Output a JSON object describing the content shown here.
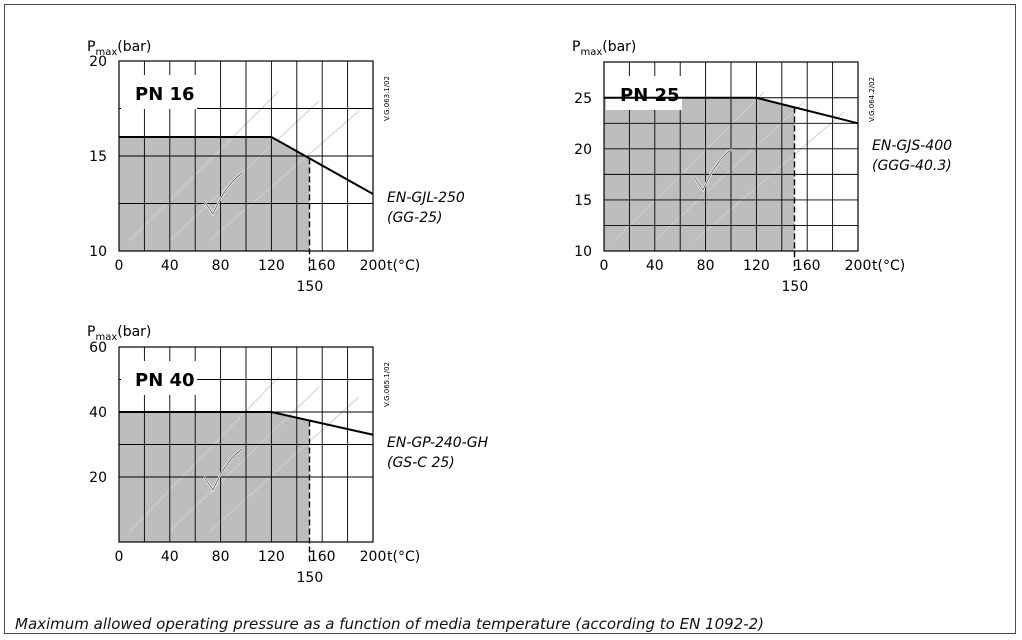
{
  "caption": "Maximum allowed operating pressure as a function of media temperature (according to  EN 1092-2)",
  "colors": {
    "fill": "#bdbdbd",
    "grid": "#000000",
    "plot_bg": "#ffffff",
    "curve": "#000000"
  },
  "icon": "checkmark-icon",
  "chart_data": [
    {
      "type": "line",
      "label": "PN 16",
      "ylabel_main": "P",
      "ylabel_sub": "max",
      "ylabel_unit": "(bar)",
      "xlabel": "t(°C)",
      "xlim": [
        0,
        200
      ],
      "ylim": [
        10,
        20
      ],
      "xticks": [
        "0",
        "40",
        "80",
        "120",
        "160",
        "200"
      ],
      "yticks": [
        "10",
        "15",
        "20"
      ],
      "marker_label": "150",
      "ref_code": "V.G.063.1/02",
      "material": "EN-GJL-250",
      "material_alt": "(GG-25)",
      "series": [
        {
          "x": [
            0,
            120,
            200
          ],
          "y": [
            16,
            16,
            13
          ]
        }
      ],
      "fill_xmax": 150
    },
    {
      "type": "line",
      "label": "PN 25",
      "ylabel_main": "P",
      "ylabel_sub": "max",
      "ylabel_unit": "(bar)",
      "xlabel": "t(°C)",
      "xlim": [
        0,
        200
      ],
      "ylim": [
        10,
        28.5
      ],
      "xticks": [
        "0",
        "40",
        "80",
        "120",
        "160",
        "200"
      ],
      "yticks": [
        "10",
        "15",
        "20",
        "25"
      ],
      "marker_label": "150",
      "ref_code": "V.G.064.2/02",
      "material": "EN-GJS-400",
      "material_alt": "(GGG-40.3)",
      "series": [
        {
          "x": [
            0,
            120,
            200
          ],
          "y": [
            25,
            25,
            22.5
          ]
        }
      ],
      "fill_xmax": 150
    },
    {
      "type": "line",
      "label": "PN 40",
      "ylabel_main": "P",
      "ylabel_sub": "max",
      "ylabel_unit": "(bar)",
      "xlabel": "t(°C)",
      "xlim": [
        0,
        200
      ],
      "ylim": [
        0,
        60
      ],
      "xticks": [
        "0",
        "40",
        "80",
        "120",
        "160",
        "200"
      ],
      "yticks": [
        "20",
        "40",
        "60"
      ],
      "marker_label": "150",
      "ref_code": "V.G.065.1/02",
      "material": "EN-GP-240-GH",
      "material_alt": "(GS-C 25)",
      "series": [
        {
          "x": [
            0,
            120,
            200
          ],
          "y": [
            40,
            40,
            33
          ]
        }
      ],
      "fill_xmax": 150
    }
  ]
}
